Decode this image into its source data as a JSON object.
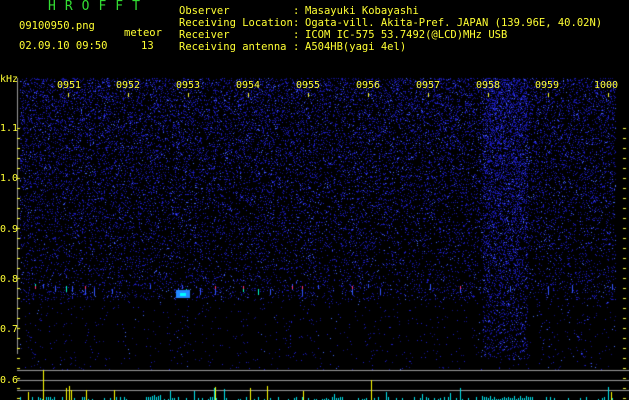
{
  "app": {
    "title": "HROFFT"
  },
  "file": {
    "name": "09100950.png",
    "datetime": "02.09.10 09:50"
  },
  "meteor": {
    "label": "meteor",
    "count": "13"
  },
  "info": [
    {
      "label": "Observer",
      "value": "Masayuki Kobayashi"
    },
    {
      "label": "Receiving Location",
      "value": "Ogata-vill. Akita-Pref. JAPAN (139.96E, 40.02N)"
    },
    {
      "label": "Receiver",
      "value": "ICOM IC-575 53.7492(@LCD)MHz USB"
    },
    {
      "label": "Receiving antenna",
      "value": "A504HB(yagi 4el)"
    }
  ],
  "axis": {
    "y_unit": "kHz",
    "y_ticks": [
      "1.1",
      "1.0",
      "0.9",
      "0.8",
      "0.7",
      "0.6"
    ],
    "x_ticks": [
      "0951",
      "0952",
      "0953",
      "0954",
      "0955",
      "0956",
      "0957",
      "0958",
      "0959",
      "1000"
    ]
  },
  "colors": {
    "text": "#ffff33",
    "title": "#33dd33",
    "noise": "#1a1aff",
    "histogram": "#00e5ee",
    "detection": "#ffff00",
    "guide_lines": "#9a9a9a"
  }
}
